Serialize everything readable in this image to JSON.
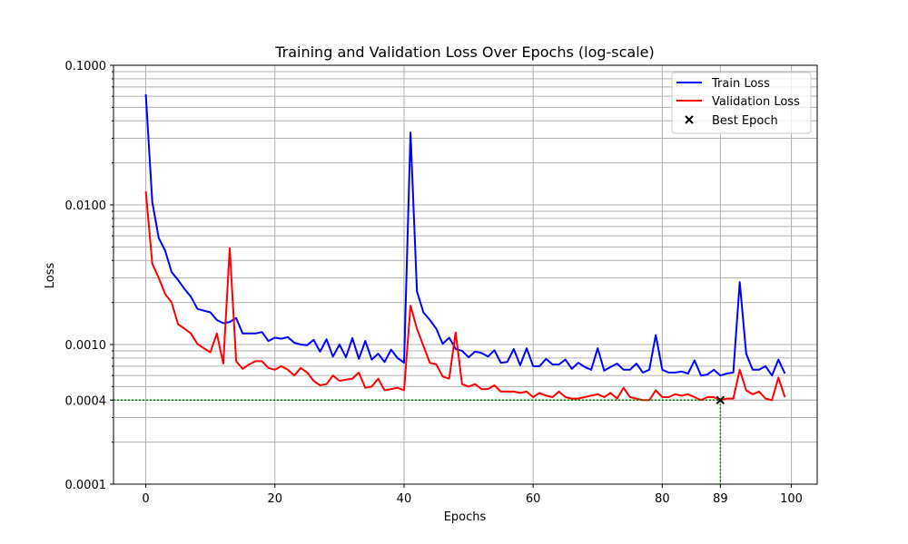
{
  "chart_data": {
    "type": "line",
    "title": "Training and Validation Loss Over Epochs (log-scale)",
    "xlabel": "Epochs",
    "ylabel": "Loss",
    "xlim": [
      -5,
      104
    ],
    "ylim": [
      0.0001,
      0.1
    ],
    "y_scale": "log",
    "grid": true,
    "legend_position": "top-right",
    "x_ticks": [
      0,
      20,
      40,
      60,
      80,
      89,
      100
    ],
    "x_tick_labels": [
      "0",
      "20",
      "40",
      "60",
      "80",
      "89",
      "100"
    ],
    "y_ticks": [
      0.0001,
      0.0004,
      0.001,
      0.01,
      0.1
    ],
    "y_tick_labels": [
      "0.0001",
      "0.0004",
      "0.0010",
      "0.0100",
      "0.1000"
    ],
    "series": [
      {
        "name": "Train Loss",
        "color": "#0000ff",
        "x": [
          0,
          1,
          2,
          3,
          4,
          5,
          6,
          7,
          8,
          9,
          10,
          11,
          12,
          13,
          14,
          15,
          16,
          17,
          18,
          19,
          20,
          21,
          22,
          23,
          24,
          25,
          26,
          27,
          28,
          29,
          30,
          31,
          32,
          33,
          34,
          35,
          36,
          37,
          38,
          39,
          40,
          41,
          42,
          43,
          44,
          45,
          46,
          47,
          48,
          49,
          50,
          51,
          52,
          53,
          54,
          55,
          56,
          57,
          58,
          59,
          60,
          61,
          62,
          63,
          64,
          65,
          66,
          67,
          68,
          69,
          70,
          71,
          72,
          73,
          74,
          75,
          76,
          77,
          78,
          79,
          80,
          81,
          82,
          83,
          84,
          85,
          86,
          87,
          88,
          89,
          90,
          91,
          92,
          93,
          94,
          95,
          96,
          97,
          98,
          99
        ],
        "values": [
          0.062,
          0.0105,
          0.0058,
          0.0047,
          0.0033,
          0.0029,
          0.0025,
          0.0022,
          0.0018,
          0.00175,
          0.0017,
          0.0015,
          0.00142,
          0.00145,
          0.00155,
          0.0012,
          0.0012,
          0.0012,
          0.00123,
          0.00106,
          0.00112,
          0.0011,
          0.00113,
          0.00103,
          0.001,
          0.00099,
          0.00108,
          0.00089,
          0.00109,
          0.00082,
          0.001,
          0.00081,
          0.00111,
          0.00079,
          0.00106,
          0.00078,
          0.00086,
          0.00075,
          0.00092,
          0.0008,
          0.00074,
          0.033,
          0.0024,
          0.0017,
          0.0015,
          0.0013,
          0.00101,
          0.00112,
          0.00093,
          0.0009,
          0.00081,
          0.00089,
          0.00087,
          0.00082,
          0.00091,
          0.00074,
          0.00075,
          0.00093,
          0.00071,
          0.00094,
          0.0007,
          0.0007,
          0.00079,
          0.00072,
          0.00072,
          0.00078,
          0.00067,
          0.00074,
          0.00069,
          0.00066,
          0.00094,
          0.00065,
          0.00069,
          0.00073,
          0.00066,
          0.00066,
          0.00073,
          0.00063,
          0.00066,
          0.00117,
          0.00066,
          0.00063,
          0.00063,
          0.00064,
          0.00062,
          0.00077,
          0.0006,
          0.00061,
          0.00066,
          0.0006,
          0.00062,
          0.00063,
          0.0028,
          0.00086,
          0.00066,
          0.00066,
          0.0007,
          0.0006,
          0.00078,
          0.00062
        ]
      },
      {
        "name": "Validation Loss",
        "color": "#ff0000",
        "x": [
          0,
          1,
          2,
          3,
          4,
          5,
          6,
          7,
          8,
          9,
          10,
          11,
          12,
          13,
          14,
          15,
          16,
          17,
          18,
          19,
          20,
          21,
          22,
          23,
          24,
          25,
          26,
          27,
          28,
          29,
          30,
          31,
          32,
          33,
          34,
          35,
          36,
          37,
          38,
          39,
          40,
          41,
          42,
          43,
          44,
          45,
          46,
          47,
          48,
          49,
          50,
          51,
          52,
          53,
          54,
          55,
          56,
          57,
          58,
          59,
          60,
          61,
          62,
          63,
          64,
          65,
          66,
          67,
          68,
          69,
          70,
          71,
          72,
          73,
          74,
          75,
          76,
          77,
          78,
          79,
          80,
          81,
          82,
          83,
          84,
          85,
          86,
          87,
          88,
          89,
          90,
          91,
          92,
          93,
          94,
          95,
          96,
          97,
          98,
          99
        ],
        "values": [
          0.0125,
          0.0038,
          0.003,
          0.0023,
          0.002,
          0.0014,
          0.0013,
          0.0012,
          0.00101,
          0.00094,
          0.00088,
          0.0012,
          0.00073,
          0.0049,
          0.00076,
          0.00067,
          0.00072,
          0.00076,
          0.00076,
          0.00068,
          0.00066,
          0.0007,
          0.00066,
          0.0006,
          0.00068,
          0.00063,
          0.00055,
          0.00051,
          0.00052,
          0.0006,
          0.00055,
          0.00056,
          0.00057,
          0.00063,
          0.00049,
          0.0005,
          0.00057,
          0.00047,
          0.00048,
          0.00049,
          0.00047,
          0.0019,
          0.0013,
          0.00098,
          0.00074,
          0.00072,
          0.00059,
          0.00057,
          0.00122,
          0.00052,
          0.0005,
          0.00052,
          0.00048,
          0.00048,
          0.00051,
          0.00046,
          0.00046,
          0.00046,
          0.00045,
          0.00046,
          0.00042,
          0.00045,
          0.00043,
          0.00042,
          0.00046,
          0.00042,
          0.00041,
          0.00041,
          0.00042,
          0.00043,
          0.00044,
          0.00042,
          0.00045,
          0.00041,
          0.00049,
          0.00042,
          0.00041,
          0.0004,
          0.0004,
          0.00047,
          0.00042,
          0.00042,
          0.00044,
          0.00043,
          0.00044,
          0.00042,
          0.0004,
          0.00042,
          0.00042,
          0.0004,
          0.00041,
          0.00041,
          0.00066,
          0.00047,
          0.00044,
          0.00046,
          0.00041,
          0.0004,
          0.00058,
          0.00042
        ]
      }
    ],
    "best_epoch": {
      "name": "Best Epoch",
      "x": 89,
      "y": 0.0004,
      "marker": "x",
      "color": "#000000",
      "guide_color": "#008000"
    }
  }
}
